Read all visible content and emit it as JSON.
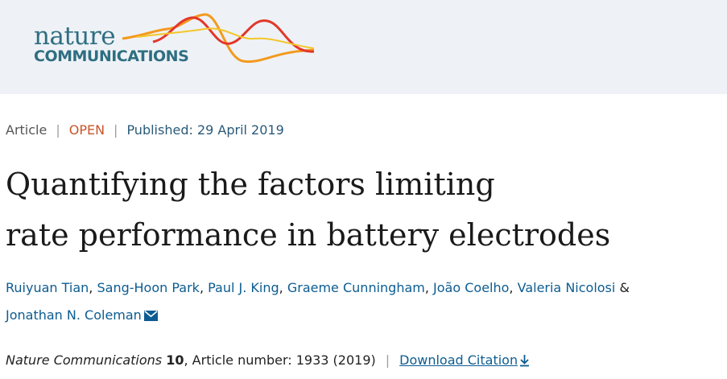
{
  "header": {
    "logo_word": "nature",
    "logo_sub": "COMMUNICATIONS",
    "logo_icon": "nature-communications-waves",
    "colors": {
      "background": "#eef2f6",
      "brand": "#2f6e82",
      "wave_orange": "#f39a1e",
      "wave_red": "#e2372a",
      "wave_yellow": "#f4c62a"
    }
  },
  "meta": {
    "type": "Article",
    "access": "OPEN",
    "published": "Published: 29 April 2019",
    "colors": {
      "open": "#c8552a",
      "published": "#2a5a7a"
    }
  },
  "title": {
    "line1": "Quantifying the factors limiting",
    "line2": "rate performance in battery electrodes"
  },
  "authors": [
    "Ruiyuan Tian",
    "Sang-Hoon Park",
    "Paul J. King",
    "Graeme Cunningham",
    "João Coelho",
    "Valeria Nicolosi",
    "Jonathan N. Coleman"
  ],
  "authors_separator": ",",
  "authors_and": "&",
  "citation": {
    "journal": "Nature Communications",
    "volume": "10",
    "article_info": ", Article number: 1933 (2019)",
    "download_label": "Download Citation",
    "download_icon": "download-arrow-icon",
    "link_color": "#0d5c91"
  }
}
